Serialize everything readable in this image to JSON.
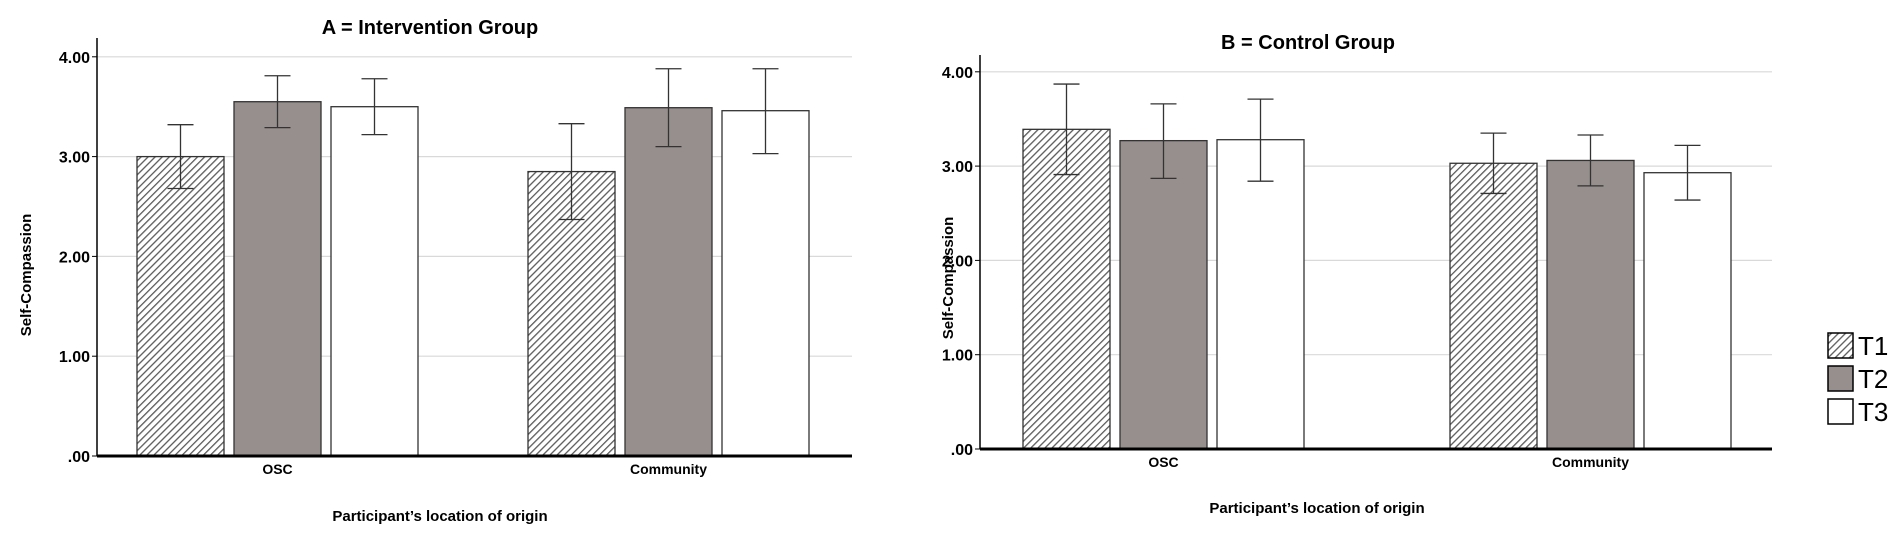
{
  "chart_data": [
    {
      "type": "bar",
      "title": "A = Intervention Group",
      "xlabel": "Participant’s location of origin",
      "ylabel": "Self-Compassion",
      "categories": [
        "OSC",
        "Community"
      ],
      "ylim": [
        0,
        4.3
      ],
      "yticks": [
        ".00",
        "1.00",
        "2.00",
        "3.00",
        "4.00"
      ],
      "grid": true,
      "series": [
        {
          "name": "T1",
          "values": [
            3.0,
            2.85
          ],
          "err_low": [
            2.68,
            2.37
          ],
          "err_high": [
            3.32,
            3.33
          ]
        },
        {
          "name": "T2",
          "values": [
            3.55,
            3.49
          ],
          "err_low": [
            3.29,
            3.1
          ],
          "err_high": [
            3.81,
            3.88
          ]
        },
        {
          "name": "T3",
          "values": [
            3.5,
            3.46
          ],
          "err_low": [
            3.22,
            3.03
          ],
          "err_high": [
            3.78,
            3.88
          ]
        }
      ]
    },
    {
      "type": "bar",
      "title": "B = Control Group",
      "xlabel": "Participant’s location of origin",
      "ylabel": "Self-Compassion",
      "categories": [
        "OSC",
        "Community"
      ],
      "ylim": [
        0,
        4.2
      ],
      "yticks": [
        ".00",
        "1.00",
        "2.00",
        "3.00",
        "4.00"
      ],
      "grid": true,
      "series": [
        {
          "name": "T1",
          "values": [
            3.39,
            3.03
          ],
          "err_low": [
            2.91,
            2.71
          ],
          "err_high": [
            3.87,
            3.35
          ]
        },
        {
          "name": "T2",
          "values": [
            3.27,
            3.06
          ],
          "err_low": [
            2.87,
            2.79
          ],
          "err_high": [
            3.66,
            3.33
          ]
        },
        {
          "name": "T3",
          "values": [
            3.28,
            2.93
          ],
          "err_low": [
            2.84,
            2.64
          ],
          "err_high": [
            3.71,
            3.22
          ]
        }
      ]
    }
  ],
  "legend": {
    "placement": "right",
    "items": [
      {
        "label": "T1",
        "style": "hatched"
      },
      {
        "label": "T2",
        "color": "#968f8d"
      },
      {
        "label": "T3",
        "color": "#ffffff"
      }
    ]
  },
  "colors": {
    "t2_fill": "#968f8d",
    "t3_fill": "#ffffff",
    "hatch_line": "#5a5a5a",
    "grid": "#d9d9d9",
    "axis": "#000000"
  }
}
